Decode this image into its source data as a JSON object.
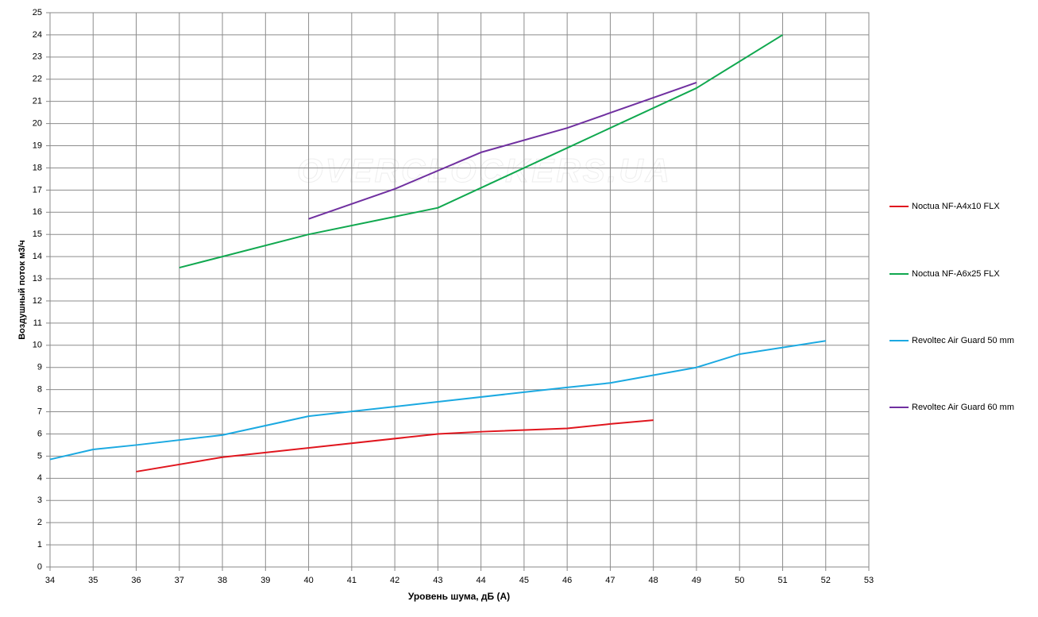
{
  "chart_data": {
    "type": "line",
    "xlabel": "Уровень шума, дБ (А)",
    "ylabel": "Воздушный поток м3/ч",
    "watermark": "OVERCLOCKERS.UA",
    "xlim": [
      34,
      53
    ],
    "ylim": [
      0,
      25
    ],
    "xticks": [
      34,
      35,
      36,
      37,
      38,
      39,
      40,
      41,
      42,
      43,
      44,
      45,
      46,
      47,
      48,
      49,
      50,
      51,
      52,
      53
    ],
    "yticks": [
      0,
      1,
      2,
      3,
      4,
      5,
      6,
      7,
      8,
      9,
      10,
      11,
      12,
      13,
      14,
      15,
      16,
      17,
      18,
      19,
      20,
      21,
      22,
      23,
      24,
      25
    ],
    "grid": true,
    "legend": "right",
    "series": [
      {
        "name": "Noctua NF-A4x10 FLX",
        "color": "#e0161e",
        "x": [
          36,
          38,
          43,
          44,
          46,
          47,
          48
        ],
        "values": [
          4.3,
          4.95,
          6.0,
          6.1,
          6.25,
          6.45,
          6.62
        ]
      },
      {
        "name": "Noctua NF-A6x25 FLX",
        "color": "#10a84f",
        "x": [
          37,
          38,
          40,
          42,
          43,
          44,
          46,
          49,
          51
        ],
        "values": [
          13.5,
          14.0,
          15.0,
          15.8,
          16.2,
          17.1,
          18.9,
          21.6,
          24.0
        ]
      },
      {
        "name": "Revoltec Air Guard  50 mm",
        "color": "#1ba9e1",
        "x": [
          34,
          35,
          36,
          38,
          40,
          43,
          46,
          47,
          49,
          50,
          52
        ],
        "values": [
          4.85,
          5.3,
          5.5,
          5.95,
          6.8,
          7.45,
          8.1,
          8.3,
          9.0,
          9.6,
          10.2
        ]
      },
      {
        "name": "Revoltec Air Guard  60 mm",
        "color": "#7030a0",
        "x": [
          40,
          42,
          44,
          46,
          49
        ],
        "values": [
          15.7,
          17.05,
          18.7,
          19.8,
          21.85
        ]
      }
    ]
  }
}
